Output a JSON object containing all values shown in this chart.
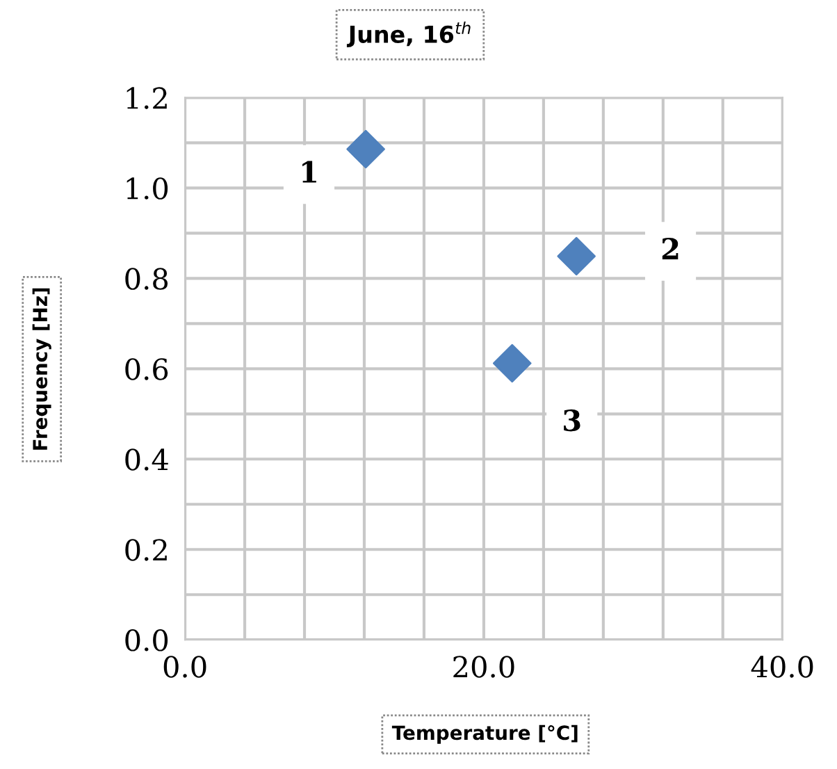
{
  "chart_data": {
    "type": "scatter",
    "title": "June, 16$^{th}$",
    "xlabel": "Temperature [°C]",
    "ylabel": "Frequency [Hz]",
    "x": [
      12.1,
      26.2,
      21.9
    ],
    "series": [
      {
        "color": "#4f81bd",
        "values": [
          1.086,
          0.849,
          0.612
        ]
      }
    ],
    "marker": "diamond",
    "xlim": [
      0,
      40
    ],
    "ylim": [
      0,
      1.2
    ],
    "xticks": [
      {
        "value": 0,
        "label": "0.0"
      },
      {
        "value": 4,
        "label": null
      },
      {
        "value": 8,
        "label": null
      },
      {
        "value": 12,
        "label": null
      },
      {
        "value": 16,
        "label": null
      },
      {
        "value": 20,
        "label": "20.0"
      },
      {
        "value": 24,
        "label": null
      },
      {
        "value": 28,
        "label": null
      },
      {
        "value": 32,
        "label": null
      },
      {
        "value": 36,
        "label": null
      },
      {
        "value": 40,
        "label": "40.0"
      }
    ],
    "yticks": [
      {
        "value": 0,
        "label": "0.0"
      },
      {
        "value": 0.1,
        "label": null
      },
      {
        "value": 0.2,
        "label": "0.2"
      },
      {
        "value": 0.3,
        "label": null
      },
      {
        "value": 0.4,
        "label": "0.4"
      },
      {
        "value": 0.5,
        "label": null
      },
      {
        "value": 0.6,
        "label": "0.6"
      },
      {
        "value": 0.7,
        "label": null
      },
      {
        "value": 0.8,
        "label": "0.8"
      },
      {
        "value": 0.9,
        "label": null
      },
      {
        "value": 1.0,
        "label": "1.0"
      },
      {
        "value": 1.1,
        "label": null
      },
      {
        "value": 1.2,
        "label": "1.2"
      }
    ],
    "grid": true,
    "annotations": [
      {
        "text": "1",
        "x": 8.3,
        "y": 1.03
      },
      {
        "text": "2",
        "x": 32.5,
        "y": 0.86
      },
      {
        "text": "3",
        "x": 25.9,
        "y": 0.48
      }
    ]
  }
}
